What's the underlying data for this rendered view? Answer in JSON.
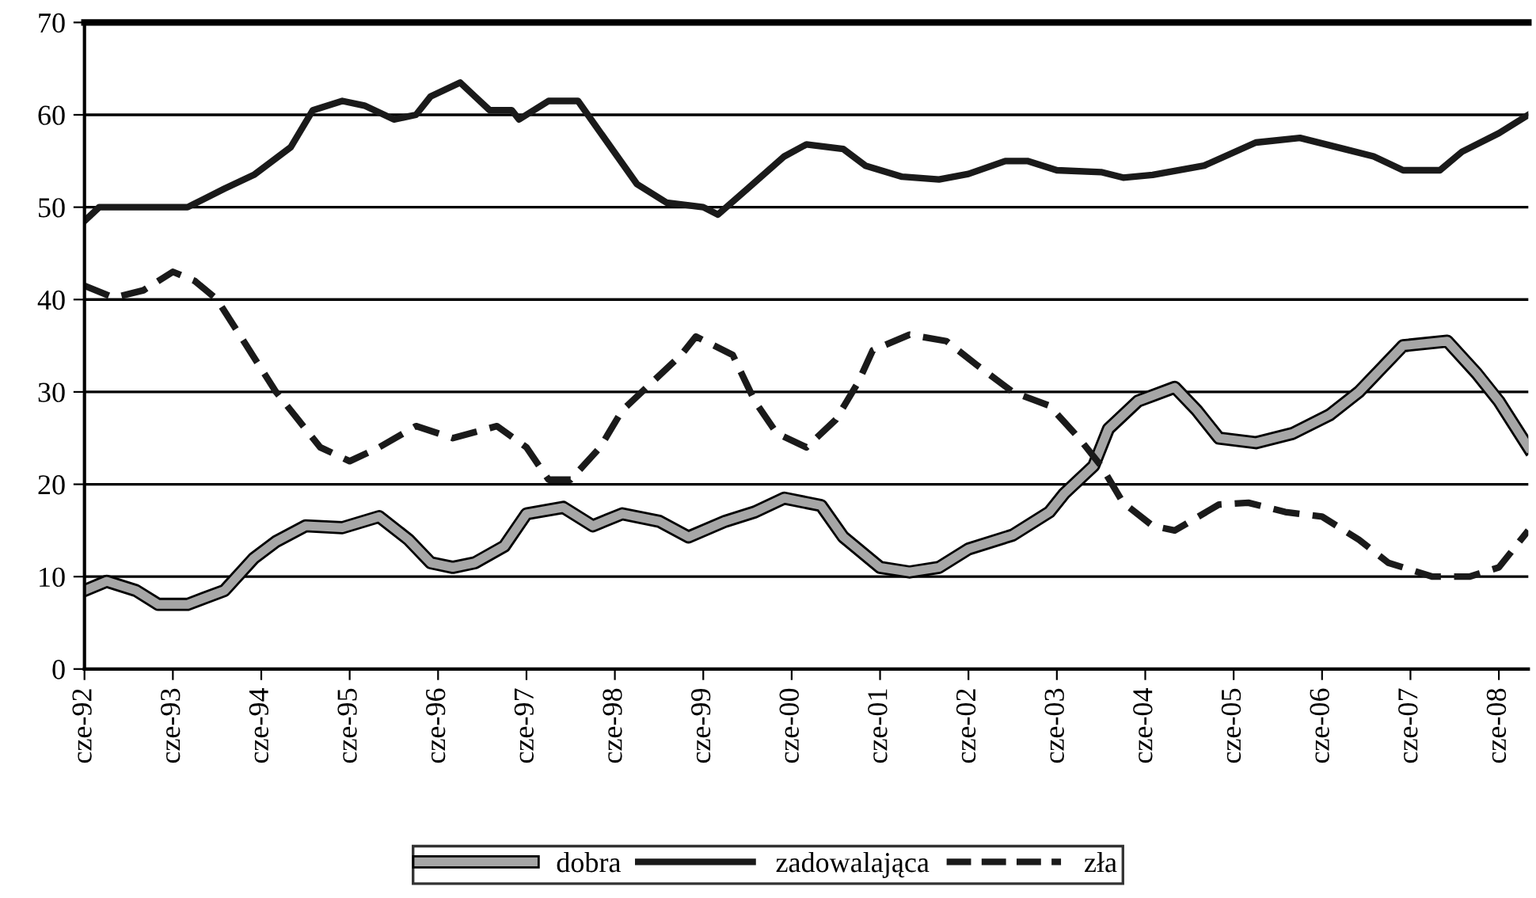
{
  "chart_data": {
    "type": "line",
    "xlim": [
      "1992-06",
      "2008-10"
    ],
    "ylim": [
      0,
      70
    ],
    "yticks": [
      0,
      10,
      20,
      30,
      40,
      50,
      60,
      70
    ],
    "xticks": [
      {
        "value": "1992-06",
        "label": "cze-92"
      },
      {
        "value": "1993-06",
        "label": "cze-93"
      },
      {
        "value": "1994-06",
        "label": "cze-94"
      },
      {
        "value": "1995-06",
        "label": "cze-95"
      },
      {
        "value": "1996-06",
        "label": "cze-96"
      },
      {
        "value": "1997-06",
        "label": "cze-97"
      },
      {
        "value": "1998-06",
        "label": "cze-98"
      },
      {
        "value": "1999-06",
        "label": "cze-99"
      },
      {
        "value": "2000-06",
        "label": "cze-00"
      },
      {
        "value": "2001-06",
        "label": "cze-01"
      },
      {
        "value": "2002-06",
        "label": "cze-02"
      },
      {
        "value": "2003-06",
        "label": "cze-03"
      },
      {
        "value": "2004-06",
        "label": "cze-04"
      },
      {
        "value": "2005-06",
        "label": "cze-05"
      },
      {
        "value": "2006-06",
        "label": "cze-06"
      },
      {
        "value": "2007-06",
        "label": "cze-07"
      },
      {
        "value": "2008-06",
        "label": "cze-08"
      }
    ],
    "grid": "y",
    "legend": "bottom",
    "marker": "none",
    "series": [
      {
        "name": "dobra",
        "color": "#a6a6a6",
        "line_style": "solid",
        "x": [
          "1992-06",
          "1992-09",
          "1993-01",
          "1993-04",
          "1993-08",
          "1994-01",
          "1994-05",
          "1994-08",
          "1994-12",
          "1995-05",
          "1995-10",
          "1996-02",
          "1996-05",
          "1996-08",
          "1996-11",
          "1997-03",
          "1997-06",
          "1997-11",
          "1998-03",
          "1998-07",
          "1998-12",
          "1999-04",
          "1999-09",
          "2000-01",
          "2000-05",
          "2000-10",
          "2001-01",
          "2001-06",
          "2001-10",
          "2002-02",
          "2002-06",
          "2002-12",
          "2003-05",
          "2003-07",
          "2003-11",
          "2004-01",
          "2004-05",
          "2004-10",
          "2005-01",
          "2005-04",
          "2005-09",
          "2006-02",
          "2006-07",
          "2006-11",
          "2007-02",
          "2007-05",
          "2007-11",
          "2008-03",
          "2008-06",
          "2008-10"
        ],
        "values": [
          8.5,
          9.5,
          8.5,
          7,
          7,
          8.5,
          12,
          13.8,
          15.5,
          15.3,
          16.5,
          14,
          11.5,
          11,
          11.5,
          13.3,
          16.8,
          17.5,
          15.5,
          16.8,
          16,
          14.3,
          16,
          17,
          18.5,
          17.7,
          14.3,
          11,
          10.5,
          11,
          13,
          14.5,
          17,
          19,
          22,
          26,
          29,
          30.5,
          28,
          25,
          24.5,
          25.5,
          27.5,
          30,
          32.5,
          35,
          35.5,
          32,
          29,
          24
        ]
      },
      {
        "name": "zadowalająca",
        "color": "#1a1a1a",
        "line_style": "solid",
        "x": [
          "1992-06",
          "1992-08",
          "1993-08",
          "1994-01",
          "1994-05",
          "1994-10",
          "1995-01",
          "1995-05",
          "1995-08",
          "1995-12",
          "1996-03",
          "1996-05",
          "1996-09",
          "1996-11",
          "1997-01",
          "1997-04",
          "1997-05",
          "1997-09",
          "1998-01",
          "1998-05",
          "1998-09",
          "1999-01",
          "1999-06",
          "1999-08",
          "1999-12",
          "2000-05",
          "2000-08",
          "2001-01",
          "2001-04",
          "2001-09",
          "2002-02",
          "2002-06",
          "2002-11",
          "2003-02",
          "2003-06",
          "2003-12",
          "2004-03",
          "2004-07",
          "2005-02",
          "2005-09",
          "2006-03",
          "2006-09",
          "2007-01",
          "2007-05",
          "2007-10",
          "2008-01",
          "2008-06",
          "2008-10"
        ],
        "values": [
          48.5,
          50,
          50,
          52,
          53.5,
          56.5,
          60.5,
          61.5,
          61,
          59.5,
          60,
          62,
          63.5,
          62,
          60.5,
          60.5,
          59.5,
          61.5,
          61.5,
          57,
          52.5,
          50.5,
          50,
          49.2,
          52,
          55.5,
          56.8,
          56.3,
          54.5,
          53.3,
          53,
          53.6,
          55,
          55,
          54,
          53.8,
          53.2,
          53.5,
          54.5,
          57,
          57.5,
          56.3,
          55.5,
          54,
          54,
          56,
          58,
          60
        ]
      },
      {
        "name": "zła",
        "color": "#1a1a1a",
        "line_style": "dashed",
        "x": [
          "1992-06",
          "1992-10",
          "1993-02",
          "1993-06",
          "1993-09",
          "1993-12",
          "1994-04",
          "1994-08",
          "1994-11",
          "1995-02",
          "1995-06",
          "1995-10",
          "1996-03",
          "1996-08",
          "1997-02",
          "1997-06",
          "1997-09",
          "1997-12",
          "1998-04",
          "1998-07",
          "1998-11",
          "1999-03",
          "1999-05",
          "1999-10",
          "2000-01",
          "2000-04",
          "2000-08",
          "2000-12",
          "2001-03",
          "2001-05",
          "2001-10",
          "2002-03",
          "2002-07",
          "2002-12",
          "2003-05",
          "2003-09",
          "2003-12",
          "2004-03",
          "2004-07",
          "2004-10",
          "2005-04",
          "2005-08",
          "2006-01",
          "2006-06",
          "2006-11",
          "2007-03",
          "2007-09",
          "2008-02",
          "2008-06",
          "2008-10"
        ],
        "values": [
          41.5,
          40.2,
          41,
          43,
          42,
          40,
          35,
          30,
          27,
          24,
          22.5,
          24,
          26.3,
          25,
          26.3,
          24,
          20.5,
          20.5,
          24,
          28,
          31,
          34,
          36,
          34,
          29,
          25.5,
          24,
          27,
          31,
          34.5,
          36.2,
          35.5,
          33,
          30,
          28.5,
          25,
          22,
          18,
          15.5,
          15,
          17.8,
          18,
          17,
          16.5,
          14,
          11.5,
          10,
          10,
          11,
          15
        ]
      }
    ]
  }
}
